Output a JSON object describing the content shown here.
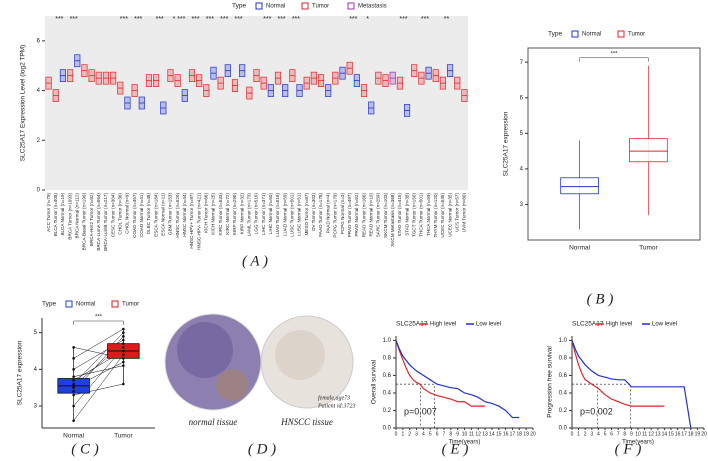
{
  "chart_data": [
    {
      "type": "box",
      "panel_label": "( A )",
      "ylabel": "SLC25A17 Expression Level (log2 TPM)",
      "legend_title": "Type",
      "ylim": [
        0,
        7
      ],
      "yticks": [
        0,
        2,
        4,
        6
      ],
      "categories": [
        "ACC Tumor (n=79)",
        "BLCA Tumor (n=408)",
        "BLCA Normal (n=19)",
        "BRCA Tumor (n=1093)",
        "BRCA Normal (n=112)",
        "BRCA-Basal Tumor (n=190)",
        "BRCA-Her2 Tumor (n=82)",
        "BRCA-LumA Tumor (n=564)",
        "BRCA-LumB Tumor (n=217)",
        "CESC Tumor (n=304)",
        "CHOL Tumor (n=36)",
        "CHOL Normal (n=9)",
        "COAD Tumor (n=457)",
        "COAD Normal (n=41)",
        "DLBC Tumor (n=48)",
        "ESCA Tumor (n=184)",
        "ESCA Normal (n=11)",
        "GBM Tumor (n=153)",
        "HNSC Tumor (n=520)",
        "HNSC Normal (n=44)",
        "HNSC-HPV+ Tumor (n=97)",
        "HNSC-HPV- Tumor (n=421)",
        "KICH Tumor (n=66)",
        "KICH Normal (n=25)",
        "KIRC Tumor (n=533)",
        "KIRC Normal (n=72)",
        "KIRP Tumor (n=290)",
        "KIRP Normal (n=32)",
        "LAML Tumor (n=173)",
        "LGG Tumor (n=516)",
        "LIHC Tumor (n=371)",
        "LIHC Normal (n=50)",
        "LUAD Tumor (n=515)",
        "LUAD Normal (n=59)",
        "LUSC Tumor (n=501)",
        "LUSC Normal (n=51)",
        "MESO Tumor (n=87)",
        "OV Tumor (n=303)",
        "PAAD Tumor (n=178)",
        "PAAD Normal (n=4)",
        "PCPG Tumor (n=179)",
        "PCPG Normal (n=3)",
        "PRAD Tumor (n=497)",
        "PRAD Normal (n=52)",
        "READ Tumor (n=166)",
        "READ Normal (n=10)",
        "SARC Tumor (n=259)",
        "SKCM Tumor (n=103)",
        "SKCM Metastasis (n=368)",
        "STAD Tumor (n=415)",
        "STAD Normal (n=35)",
        "TGCT Tumor (n=150)",
        "THCA Tumor (n=501)",
        "THCA Normal (n=59)",
        "THYM Tumor (n=120)",
        "UCEC Tumor (n=545)",
        "UCEC Normal (n=35)",
        "UCS Tumor (n=57)",
        "UVM Tumor (n=80)"
      ],
      "series": [
        {
          "name": "Normal",
          "color": "#2233cc",
          "values": [
            null,
            null,
            4.6,
            null,
            5.2,
            null,
            null,
            null,
            null,
            null,
            null,
            3.5,
            null,
            3.5,
            null,
            null,
            3.3,
            null,
            null,
            3.8,
            null,
            null,
            null,
            4.7,
            null,
            4.8,
            null,
            4.8,
            null,
            null,
            null,
            4.0,
            null,
            4.0,
            null,
            4.0,
            null,
            null,
            null,
            4.0,
            null,
            4.7,
            null,
            4.4,
            null,
            3.3,
            null,
            null,
            null,
            null,
            3.2,
            null,
            null,
            4.7,
            null,
            null,
            4.8,
            null,
            null
          ]
        },
        {
          "name": "Tumor",
          "color": "#e0262a",
          "values": [
            4.3,
            3.8,
            null,
            4.6,
            null,
            4.8,
            4.6,
            4.5,
            4.5,
            4.5,
            4.1,
            null,
            4.0,
            null,
            4.4,
            4.4,
            null,
            4.6,
            4.4,
            null,
            4.6,
            4.4,
            4.0,
            null,
            4.3,
            null,
            4.2,
            null,
            3.9,
            4.6,
            4.3,
            null,
            4.5,
            null,
            4.6,
            null,
            4.3,
            4.5,
            4.4,
            null,
            4.5,
            null,
            4.9,
            null,
            4.0,
            null,
            4.5,
            4.4,
            null,
            4.3,
            null,
            4.8,
            4.5,
            null,
            4.6,
            4.3,
            null,
            4.3,
            3.8
          ]
        },
        {
          "name": "Metastasis",
          "color": "#9933bb",
          "values": [
            null,
            null,
            null,
            null,
            null,
            null,
            null,
            null,
            null,
            null,
            null,
            null,
            null,
            null,
            null,
            null,
            null,
            null,
            null,
            null,
            null,
            null,
            null,
            null,
            null,
            null,
            null,
            null,
            null,
            null,
            null,
            null,
            null,
            null,
            null,
            null,
            null,
            null,
            null,
            null,
            null,
            null,
            null,
            null,
            null,
            null,
            null,
            null,
            4.5,
            null,
            null,
            null,
            null,
            null,
            null,
            null,
            null,
            null,
            null
          ]
        }
      ],
      "significance": [
        null,
        "***",
        null,
        "***",
        null,
        null,
        null,
        null,
        null,
        null,
        "***",
        null,
        "***",
        null,
        null,
        "***",
        null,
        "*",
        "***",
        null,
        "***",
        null,
        "***",
        null,
        "***",
        null,
        "***",
        null,
        null,
        null,
        "***",
        null,
        "***",
        null,
        "***",
        null,
        null,
        null,
        null,
        null,
        null,
        null,
        "***",
        null,
        "*",
        null,
        null,
        null,
        null,
        "***",
        null,
        null,
        "***",
        null,
        null,
        "**",
        null,
        null,
        null
      ]
    },
    {
      "type": "box",
      "panel_label": "( B )",
      "ylabel": "SLC25A17 expression",
      "legend_title": "Type",
      "significance": "***",
      "categories": [
        "Normal",
        "Tumor"
      ],
      "colors": [
        "#2233cc",
        "#e0262a"
      ],
      "min": [
        2.3,
        2.7
      ],
      "q1": [
        3.3,
        4.2
      ],
      "median": [
        3.5,
        4.5
      ],
      "q3": [
        3.75,
        4.85
      ],
      "max": [
        4.8,
        6.9
      ],
      "ylim": [
        2,
        7.4
      ],
      "yticks": [
        3,
        4,
        5,
        6,
        7
      ]
    },
    {
      "type": "paired",
      "panel_label": "( C )",
      "ylabel": "SLC25A17 expression",
      "legend_title": "Type",
      "significance": "***",
      "categories": [
        "Normal",
        "Tumor"
      ],
      "colors": [
        "#1f3fe0",
        "#e01a1a"
      ],
      "min": [
        2.6,
        3.6
      ],
      "q1": [
        3.35,
        4.3
      ],
      "median": [
        3.55,
        4.5
      ],
      "q3": [
        3.75,
        4.7
      ],
      "max": [
        4.6,
        5.1
      ],
      "normal_points": [
        2.6,
        3.0,
        3.3,
        3.4,
        3.5,
        3.55,
        3.6,
        3.7,
        3.8,
        4.0,
        4.3,
        4.6
      ],
      "tumor_points": [
        4.4,
        4.6,
        3.6,
        4.9,
        4.2,
        4.7,
        5.0,
        4.5,
        4.1,
        4.8,
        5.1,
        4.3
      ],
      "ylim": [
        2.4,
        5.4
      ],
      "yticks": [
        3,
        4,
        5
      ]
    },
    {
      "type": "line",
      "panel_label": "( E )",
      "xlabel": "Time(years)",
      "ylabel": "Overall survival",
      "legend_title": "SLC25A17",
      "annotation": "p=0.007",
      "median_survival": [
        3.6,
        5.6
      ],
      "xlim": [
        0,
        20
      ],
      "xticks": [
        0,
        1,
        2,
        3,
        4,
        5,
        6,
        7,
        8,
        9,
        10,
        11,
        12,
        13,
        14,
        15,
        16,
        17,
        18,
        19,
        20
      ],
      "ylim": [
        0,
        1.05
      ],
      "yticks": [
        {
          "value": 0,
          "label": "0.0"
        },
        {
          "value": 0.2,
          "label": "0.2"
        },
        {
          "value": 0.4,
          "label": "0.4"
        },
        {
          "value": 0.6,
          "label": "0.6"
        },
        {
          "value": 0.8,
          "label": "0.8"
        },
        {
          "value": 1,
          "label": "1.0"
        }
      ],
      "series": [
        {
          "name": "High level",
          "color": "#e0262a",
          "x": [
            0,
            0.5,
            1,
            1.5,
            2,
            2.5,
            3,
            3.5,
            4,
            5,
            6,
            7,
            8,
            9,
            10,
            11,
            12,
            13
          ],
          "values": [
            1,
            0.88,
            0.78,
            0.68,
            0.6,
            0.55,
            0.52,
            0.5,
            0.45,
            0.4,
            0.37,
            0.35,
            0.33,
            0.3,
            0.3,
            0.25,
            0.25,
            0.25
          ]
        },
        {
          "name": "Low level",
          "color": "#2233cc",
          "x": [
            0,
            0.5,
            1,
            2,
            3,
            4,
            5,
            6,
            7,
            8,
            9,
            10,
            11,
            12,
            13,
            14,
            15,
            16,
            17,
            18
          ],
          "values": [
            1,
            0.9,
            0.82,
            0.72,
            0.65,
            0.6,
            0.55,
            0.5,
            0.48,
            0.46,
            0.45,
            0.4,
            0.38,
            0.35,
            0.3,
            0.28,
            0.25,
            0.2,
            0.12,
            0.12
          ]
        }
      ]
    },
    {
      "type": "line",
      "panel_label": "( F )",
      "xlabel": "Time(years)",
      "ylabel": "Progression free survival",
      "legend_title": "SLC25A17",
      "annotation": "p=0.002",
      "median_survival": [
        3.9,
        8.9
      ],
      "xlim": [
        0,
        20
      ],
      "xticks": [
        0,
        1,
        2,
        3,
        4,
        5,
        6,
        7,
        8,
        9,
        10,
        11,
        12,
        13,
        14,
        15,
        16,
        17,
        18,
        19,
        20
      ],
      "ylim": [
        0,
        1.05
      ],
      "yticks": [
        {
          "value": 0,
          "label": "0.0"
        },
        {
          "value": 0.2,
          "label": "0.2"
        },
        {
          "value": 0.4,
          "label": "0.4"
        },
        {
          "value": 0.6,
          "label": "0.6"
        },
        {
          "value": 0.8,
          "label": "0.8"
        },
        {
          "value": 1,
          "label": "1.0"
        }
      ],
      "series": [
        {
          "name": "High level",
          "color": "#e0262a",
          "x": [
            0,
            0.5,
            1,
            1.5,
            2,
            3,
            4,
            5,
            6,
            7,
            8,
            9,
            10,
            11,
            12,
            13,
            14
          ],
          "values": [
            1,
            0.85,
            0.72,
            0.62,
            0.55,
            0.5,
            0.45,
            0.38,
            0.33,
            0.3,
            0.27,
            0.25,
            0.25,
            0.25,
            0.25,
            0.25,
            0.25
          ]
        },
        {
          "name": "Low level",
          "color": "#2233cc",
          "x": [
            0,
            0.5,
            1,
            2,
            3,
            4,
            5,
            6,
            7,
            8,
            9,
            10,
            11,
            12,
            13,
            14,
            15,
            16,
            17,
            18
          ],
          "values": [
            1,
            0.9,
            0.82,
            0.72,
            0.65,
            0.6,
            0.58,
            0.56,
            0.55,
            0.55,
            0.47,
            0.47,
            0.47,
            0.47,
            0.47,
            0.47,
            0.47,
            0.47,
            0.47,
            0
          ]
        }
      ]
    }
  ],
  "tissue_panel": {
    "panel_label": "( D )",
    "captions": [
      "normal tissue",
      "HNSCC tissue"
    ],
    "patient_info": [
      "female,age73",
      "Patient id:3723"
    ]
  }
}
